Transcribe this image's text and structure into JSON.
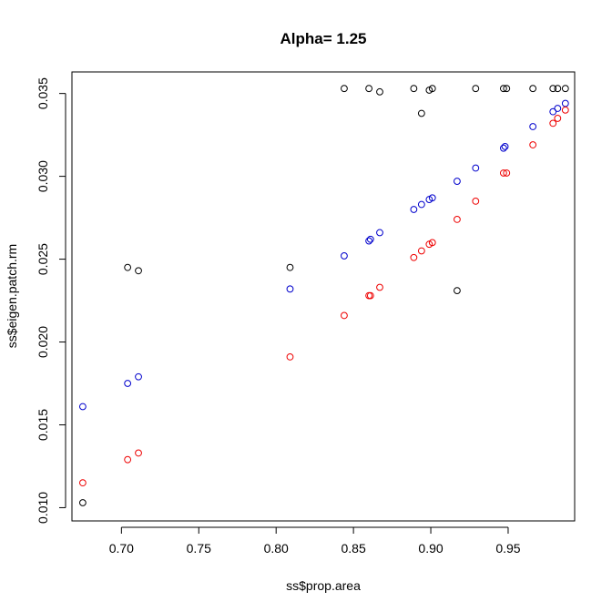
{
  "chart_data": {
    "type": "scatter",
    "title": "Alpha= 1.25",
    "xlabel": "ss$prop.area",
    "ylabel": "ss$eigen.patch.rm",
    "xlim": [
      0.668,
      0.993
    ],
    "ylim": [
      0.0092,
      0.0363
    ],
    "xticks": [
      0.7,
      0.75,
      0.8,
      0.85,
      0.9,
      0.95
    ],
    "xtick_labels": [
      "0.70",
      "0.75",
      "0.80",
      "0.85",
      "0.90",
      "0.95"
    ],
    "yticks": [
      0.01,
      0.015,
      0.02,
      0.025,
      0.03,
      0.035
    ],
    "ytick_labels": [
      "0.010",
      "0.015",
      "0.020",
      "0.025",
      "0.030",
      "0.035"
    ],
    "grid": false,
    "marker": "open-circle",
    "series": [
      {
        "color": "#000000",
        "points": [
          [
            0.675,
            0.0103
          ],
          [
            0.704,
            0.0245
          ],
          [
            0.711,
            0.0243
          ],
          [
            0.809,
            0.0245
          ],
          [
            0.844,
            0.0353
          ],
          [
            0.86,
            0.0353
          ],
          [
            0.867,
            0.0351
          ],
          [
            0.889,
            0.0353
          ],
          [
            0.894,
            0.0338
          ],
          [
            0.899,
            0.0352
          ],
          [
            0.901,
            0.0353
          ],
          [
            0.917,
            0.0231
          ],
          [
            0.929,
            0.0353
          ],
          [
            0.947,
            0.0353
          ],
          [
            0.949,
            0.0353
          ],
          [
            0.966,
            0.0353
          ],
          [
            0.979,
            0.0353
          ],
          [
            0.982,
            0.0353
          ],
          [
            0.987,
            0.0353
          ]
        ]
      },
      {
        "color": "#0000cc",
        "points": [
          [
            0.675,
            0.0161
          ],
          [
            0.704,
            0.0175
          ],
          [
            0.711,
            0.0179
          ],
          [
            0.809,
            0.0232
          ],
          [
            0.844,
            0.0252
          ],
          [
            0.86,
            0.0261
          ],
          [
            0.861,
            0.0262
          ],
          [
            0.867,
            0.0266
          ],
          [
            0.889,
            0.028
          ],
          [
            0.894,
            0.0283
          ],
          [
            0.899,
            0.0286
          ],
          [
            0.901,
            0.0287
          ],
          [
            0.917,
            0.0297
          ],
          [
            0.929,
            0.0305
          ],
          [
            0.947,
            0.0317
          ],
          [
            0.948,
            0.0318
          ],
          [
            0.966,
            0.033
          ],
          [
            0.979,
            0.0339
          ],
          [
            0.982,
            0.0341
          ],
          [
            0.987,
            0.0344
          ]
        ]
      },
      {
        "color": "#ee0000",
        "points": [
          [
            0.675,
            0.0115
          ],
          [
            0.704,
            0.0129
          ],
          [
            0.711,
            0.0133
          ],
          [
            0.809,
            0.0191
          ],
          [
            0.844,
            0.0216
          ],
          [
            0.86,
            0.0228
          ],
          [
            0.861,
            0.0228
          ],
          [
            0.867,
            0.0233
          ],
          [
            0.889,
            0.0251
          ],
          [
            0.894,
            0.0255
          ],
          [
            0.899,
            0.0259
          ],
          [
            0.901,
            0.026
          ],
          [
            0.917,
            0.0274
          ],
          [
            0.929,
            0.0285
          ],
          [
            0.947,
            0.0302
          ],
          [
            0.949,
            0.0302
          ],
          [
            0.966,
            0.0319
          ],
          [
            0.979,
            0.0332
          ],
          [
            0.982,
            0.0335
          ],
          [
            0.987,
            0.034
          ]
        ]
      }
    ]
  }
}
